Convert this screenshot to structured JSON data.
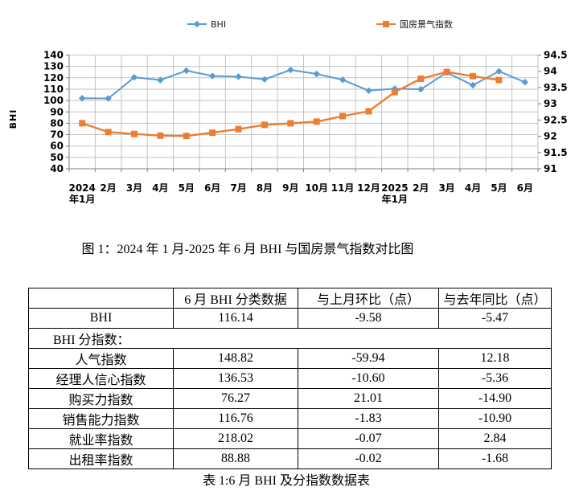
{
  "figure_caption": "图 1：2024 年 1 月-2025 年 6 月 BHI 与国房景气指数对比图",
  "table_caption": "表 1:6 月 BHI 及分指数数据表",
  "chart_data": {
    "type": "line",
    "title": "",
    "xlabel": "",
    "ylabel": "BHI",
    "grid": true,
    "legend_position": "top",
    "categories": [
      [
        "2024",
        "年1月"
      ],
      [
        "2月"
      ],
      [
        "3月"
      ],
      [
        "4月"
      ],
      [
        "5月"
      ],
      [
        "6月"
      ],
      [
        "7月"
      ],
      [
        "8月"
      ],
      [
        "9月"
      ],
      [
        "10月"
      ],
      [
        "11月"
      ],
      [
        "12月"
      ],
      [
        "2025",
        "年1月"
      ],
      [
        "2月"
      ],
      [
        "3月"
      ],
      [
        "4月"
      ],
      [
        "5月"
      ],
      [
        "6月"
      ]
    ],
    "left_axis": {
      "title": "BHI",
      "min": 40,
      "max": 140,
      "step": 10
    },
    "right_axis": {
      "min": 91,
      "max": 94.5,
      "step": 0.5
    },
    "series": [
      {
        "name": "BHI",
        "axis": "left",
        "color": "#5B9BD5",
        "marker": "diamond",
        "values": [
          102.0,
          101.8,
          120.4,
          118.0,
          126.3,
          121.61,
          121.0,
          118.6,
          126.9,
          123.4,
          118.2,
          108.7,
          110.4,
          109.9,
          124.6,
          113.5,
          125.72,
          116.14
        ]
      },
      {
        "name": "国房景气指数",
        "axis": "right",
        "color": "#ED7D31",
        "marker": "square",
        "values": [
          92.4,
          92.13,
          92.07,
          92.02,
          92.01,
          92.11,
          92.22,
          92.35,
          92.4,
          92.45,
          92.62,
          92.77,
          93.36,
          93.77,
          93.98,
          93.85,
          93.73,
          null
        ]
      }
    ]
  },
  "table": {
    "headers": [
      "",
      "6 月 BHI 分类数据",
      "与上月环比（点）",
      "与去年同比（点）"
    ],
    "rows": [
      {
        "label": "BHI",
        "values": [
          "116.14",
          "-9.58",
          "-5.47"
        ]
      },
      {
        "label": "BHI 分指数：",
        "span": true
      },
      {
        "label": "人气指数",
        "values": [
          "148.82",
          "-59.94",
          "12.18"
        ]
      },
      {
        "label": "经理人信心指数",
        "values": [
          "136.53",
          "-10.60",
          "-5.36"
        ]
      },
      {
        "label": "购买力指数",
        "values": [
          "76.27",
          "21.01",
          "-14.90"
        ]
      },
      {
        "label": "销售能力指数",
        "values": [
          "116.76",
          "-1.83",
          "-10.90"
        ]
      },
      {
        "label": "就业率指数",
        "values": [
          "218.02",
          "-0.07",
          "2.84"
        ]
      },
      {
        "label": "出租率指数",
        "values": [
          "88.88",
          "-0.02",
          "-1.68"
        ]
      }
    ]
  }
}
